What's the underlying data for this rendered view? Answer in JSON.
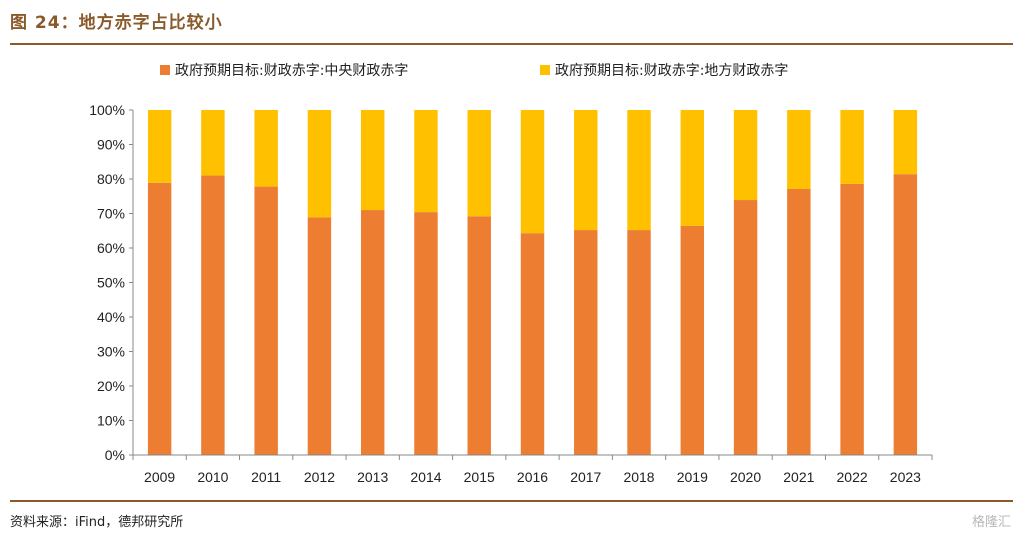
{
  "header": {
    "figure_title": "图 24：地方赤字占比较小"
  },
  "footer": {
    "source": "资料来源：iFind，德邦研究所",
    "watermark": "格隆汇"
  },
  "colors": {
    "central": "#ED7D31",
    "local": "#FFC000",
    "accent_brown": "#8a5a2b"
  },
  "chart_data": {
    "type": "bar",
    "stacked": true,
    "title": "",
    "xlabel": "",
    "ylabel": "",
    "ylim": [
      0,
      100
    ],
    "yticks": [
      "0%",
      "10%",
      "20%",
      "30%",
      "40%",
      "50%",
      "60%",
      "70%",
      "80%",
      "90%",
      "100%"
    ],
    "grid": false,
    "legend_position": "top",
    "categories": [
      "2009",
      "2010",
      "2011",
      "2012",
      "2013",
      "2014",
      "2015",
      "2016",
      "2017",
      "2018",
      "2019",
      "2020",
      "2021",
      "2022",
      "2023"
    ],
    "series": [
      {
        "name": "政府预期目标:财政赤字:中央财政赤字",
        "values": [
          78.9,
          81.0,
          77.8,
          68.9,
          71.0,
          70.4,
          69.2,
          64.3,
          65.2,
          65.2,
          66.4,
          73.9,
          77.1,
          78.6,
          81.4
        ]
      },
      {
        "name": "政府预期目标:财政赤字:地方财政赤字",
        "values": [
          21.1,
          19.0,
          22.2,
          31.1,
          29.0,
          29.6,
          30.8,
          35.7,
          34.8,
          34.8,
          33.6,
          26.1,
          22.9,
          21.4,
          18.6
        ]
      }
    ]
  }
}
